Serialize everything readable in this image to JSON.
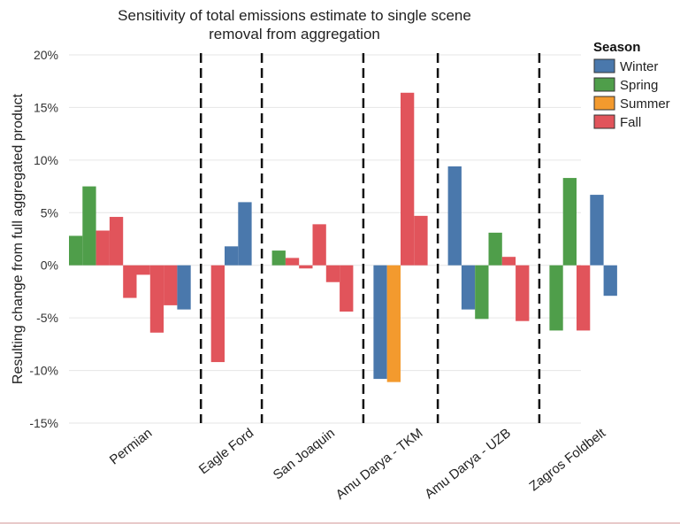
{
  "chart_data": {
    "type": "bar",
    "title_lines": [
      "Sensitivity of total emissions estimate to single scene",
      "removal from aggregation"
    ],
    "ylabel": "Resulting change from full aggregated product",
    "xlabel": "",
    "ylim": [
      -15,
      20
    ],
    "yticks": [
      -15,
      -10,
      -5,
      0,
      5,
      10,
      15,
      20
    ],
    "ytick_labels": [
      "-15%",
      "-10%",
      "-5%",
      "0%",
      "5%",
      "10%",
      "15%",
      "20%"
    ],
    "grid": true,
    "legend": {
      "title": "Season",
      "placement": "top-right",
      "entries": [
        {
          "name": "Winter",
          "color": "#4a78ac"
        },
        {
          "name": "Spring",
          "color": "#4f9e4a"
        },
        {
          "name": "Summer",
          "color": "#f39a2e"
        },
        {
          "name": "Fall",
          "color": "#e1545b"
        }
      ]
    },
    "colors": {
      "Winter": "#4a78ac",
      "Spring": "#4f9e4a",
      "Summer": "#f39a2e",
      "Fall": "#e1545b"
    },
    "groups": [
      {
        "name": "Permian",
        "bars": [
          {
            "season": "Spring",
            "value": 2.8
          },
          {
            "season": "Spring",
            "value": 7.5
          },
          {
            "season": "Fall",
            "value": 3.3
          },
          {
            "season": "Fall",
            "value": 4.6
          },
          {
            "season": "Fall",
            "value": -3.1
          },
          {
            "season": "Fall",
            "value": -0.9
          },
          {
            "season": "Fall",
            "value": -6.4
          },
          {
            "season": "Fall",
            "value": -3.8
          },
          {
            "season": "Winter",
            "value": -4.2
          }
        ]
      },
      {
        "name": "Eagle Ford",
        "bars": [
          {
            "season": "Fall",
            "value": -9.2
          },
          {
            "season": "Winter",
            "value": 1.8
          },
          {
            "season": "Winter",
            "value": 6.0
          }
        ]
      },
      {
        "name": "San Joaquin",
        "bars": [
          {
            "season": "Spring",
            "value": 1.4
          },
          {
            "season": "Fall",
            "value": 0.7
          },
          {
            "season": "Fall",
            "value": -0.3
          },
          {
            "season": "Fall",
            "value": 3.9
          },
          {
            "season": "Fall",
            "value": -1.6
          },
          {
            "season": "Fall",
            "value": -4.4
          }
        ]
      },
      {
        "name": "Amu Darya - TKM",
        "bars": [
          {
            "season": "Winter",
            "value": -10.8
          },
          {
            "season": "Summer",
            "value": -11.1
          },
          {
            "season": "Fall",
            "value": 16.4
          },
          {
            "season": "Fall",
            "value": 4.7
          }
        ]
      },
      {
        "name": "Amu Darya - UZB",
        "bars": [
          {
            "season": "Winter",
            "value": 9.4
          },
          {
            "season": "Winter",
            "value": -4.2
          },
          {
            "season": "Spring",
            "value": -5.1
          },
          {
            "season": "Spring",
            "value": 3.1
          },
          {
            "season": "Fall",
            "value": 0.8
          },
          {
            "season": "Fall",
            "value": -5.3
          }
        ]
      },
      {
        "name": "Zagros Foldbelt",
        "bars": [
          {
            "season": "Spring",
            "value": -6.2
          },
          {
            "season": "Spring",
            "value": 8.3
          },
          {
            "season": "Fall",
            "value": -6.2
          },
          {
            "season": "Winter",
            "value": 6.7
          },
          {
            "season": "Winter",
            "value": -2.9
          }
        ]
      }
    ]
  }
}
